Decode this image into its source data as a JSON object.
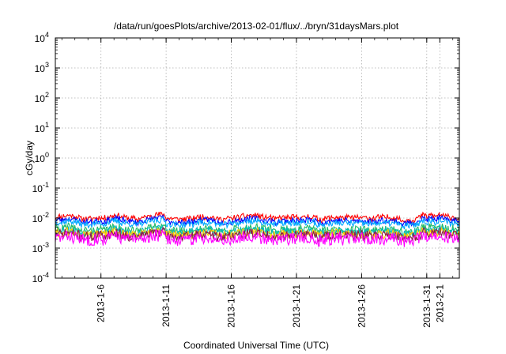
{
  "chart_data": {
    "type": "line",
    "title": "/data/run/goesPlots/archive/2013-02-01/flux/../bryn/31daysMars.plot",
    "xlabel": "Coordinated Universal Time (UTC)",
    "ylabel": "cGy/day",
    "y_scale": "log",
    "ylim": [
      0.0001,
      10000
    ],
    "y_ticks": [
      {
        "base": "10",
        "exp": "-4"
      },
      {
        "base": "10",
        "exp": "-3"
      },
      {
        "base": "10",
        "exp": "-2"
      },
      {
        "base": "10",
        "exp": "-1"
      },
      {
        "base": "10",
        "exp": "0"
      },
      {
        "base": "10",
        "exp": "1"
      },
      {
        "base": "10",
        "exp": "2"
      },
      {
        "base": "10",
        "exp": "3"
      },
      {
        "base": "10",
        "exp": "4"
      }
    ],
    "xlim": [
      "2013-01-02T12:00",
      "2013-02-02T12:00"
    ],
    "x_ticks": [
      "2013-1-6",
      "2013-1-11",
      "2013-1-16",
      "2013-1-21",
      "2013-1-26",
      "2013-1-31",
      "2013-2-1"
    ],
    "x_tick_dates": [
      "2013-01-06",
      "2013-01-11",
      "2013-01-16",
      "2013-01-21",
      "2013-01-26",
      "2013-01-31",
      "2013-02-01"
    ],
    "grid": true,
    "series": [
      {
        "color": "#ff0000",
        "level": 0.0105,
        "jitter": 0.09,
        "seed": 11
      },
      {
        "color": "#0000ff",
        "level": 0.0082,
        "jitter": 0.09,
        "seed": 23
      },
      {
        "color": "#00aaff",
        "level": 0.0068,
        "jitter": 0.1,
        "seed": 37
      },
      {
        "color": "#22bb66",
        "level": 0.0042,
        "jitter": 0.13,
        "seed": 41
      },
      {
        "color": "#00bbbb",
        "level": 0.0036,
        "jitter": 0.13,
        "seed": 53
      },
      {
        "color": "#ffcc00",
        "level": 0.003,
        "jitter": 0.15,
        "seed": 61
      },
      {
        "color": "#8b1a4a",
        "level": 0.0027,
        "jitter": 0.16,
        "seed": 71
      },
      {
        "color": "#ff00ff",
        "level": 0.0021,
        "jitter": 0.2,
        "seed": 83
      }
    ]
  }
}
